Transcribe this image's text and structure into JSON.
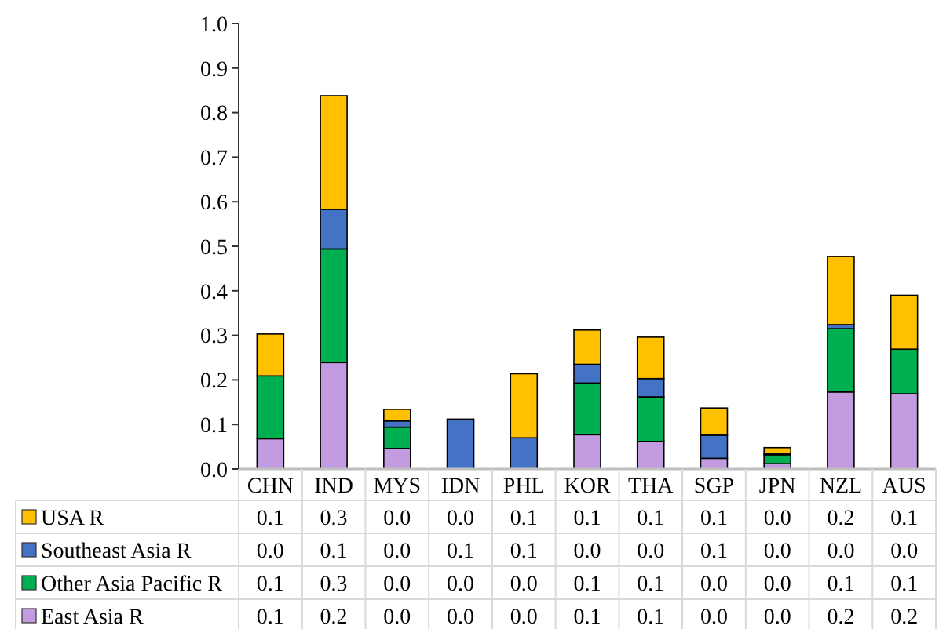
{
  "chart_data": {
    "type": "bar",
    "stacked": true,
    "legend": "bottom",
    "grid": false,
    "categories": [
      "CHN",
      "IND",
      "MYS",
      "IDN",
      "PHL",
      "KOR",
      "THA",
      "SGP",
      "JPN",
      "NZL",
      "AUS"
    ],
    "ylim": [
      0,
      1
    ],
    "yticks": [
      {
        "value": 0,
        "label": "0.0"
      },
      {
        "value": 0.1,
        "label": "0.1"
      },
      {
        "value": 0.2,
        "label": "0.2"
      },
      {
        "value": 0.3,
        "label": "0.3"
      },
      {
        "value": 0.4,
        "label": "0.4"
      },
      {
        "value": 0.5,
        "label": "0.5"
      },
      {
        "value": 0.6,
        "label": "0.6"
      },
      {
        "value": 0.7,
        "label": "0.7"
      },
      {
        "value": 0.8,
        "label": "0.8"
      },
      {
        "value": 0.9,
        "label": "0.9"
      },
      {
        "value": 1,
        "label": "1.0"
      }
    ],
    "series": [
      {
        "name": "East Asia R",
        "color": "#c39be0",
        "values": [
          0.068,
          0.239,
          0.046,
          0,
          0,
          0.077,
          0.062,
          0.024,
          0.012,
          0.173,
          0.169
        ],
        "value_labels": [
          "0.1",
          "0.2",
          "0.0",
          "0.0",
          "0.0",
          "0.1",
          "0.1",
          "0.0",
          "0.0",
          "0.2",
          "0.2"
        ]
      },
      {
        "name": "Other Asia Pacific R",
        "color": "#00b050",
        "values": [
          0.141,
          0.255,
          0.048,
          0,
          0,
          0.116,
          0.1,
          0,
          0.02,
          0.142,
          0.1
        ],
        "value_labels": [
          "0.1",
          "0.3",
          "0.0",
          "0.0",
          "0.0",
          "0.1",
          "0.1",
          "0.0",
          "0.0",
          "0.1",
          "0.1"
        ]
      },
      {
        "name": "Southeast Asia R",
        "color": "#4472c4",
        "values": [
          0,
          0.089,
          0.014,
          0.112,
          0.07,
          0.042,
          0.041,
          0.052,
          0.002,
          0.009,
          0
        ],
        "value_labels": [
          "0.0",
          "0.1",
          "0.0",
          "0.1",
          "0.1",
          "0.0",
          "0.0",
          "0.1",
          "0.0",
          "0.0",
          "0.0"
        ]
      },
      {
        "name": "USA R",
        "color": "#ffc000",
        "values": [
          0.094,
          0.255,
          0.026,
          0,
          0.144,
          0.077,
          0.093,
          0.061,
          0.014,
          0.153,
          0.121
        ],
        "value_labels": [
          "0.1",
          "0.3",
          "0.0",
          "0.0",
          "0.1",
          "0.1",
          "0.1",
          "0.1",
          "0.0",
          "0.2",
          "0.1"
        ]
      }
    ]
  }
}
